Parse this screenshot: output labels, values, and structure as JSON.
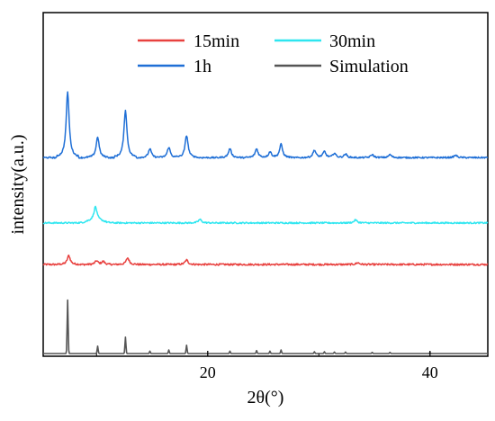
{
  "chart_data": {
    "type": "line",
    "xlabel": "2θ(°)",
    "ylabel": "intensity(a.u.)",
    "xlim": [
      5.2,
      45.2
    ],
    "x_ticks": [
      20,
      40
    ],
    "x_tick_labels": [
      "20",
      "40"
    ],
    "y_ticks": "none",
    "grid": false,
    "legend": {
      "placement": "top",
      "columns": 2
    },
    "baseline_offsets": [
      0,
      0.3,
      0.44,
      0.66
    ],
    "series": [
      {
        "name": "15min",
        "color": "#e8413f",
        "baseline_offset": 0.3,
        "peaks": [
          [
            7.5,
            0.03
          ],
          [
            10.0,
            0.012
          ],
          [
            10.6,
            0.01
          ],
          [
            12.8,
            0.022
          ],
          [
            18.1,
            0.015
          ],
          [
            33.5,
            0.006
          ]
        ],
        "noise": 0.006
      },
      {
        "name": "30min",
        "color": "#2ee6f0",
        "baseline_offset": 0.44,
        "peaks": [
          [
            9.9,
            0.045
          ],
          [
            19.3,
            0.012
          ],
          [
            33.3,
            0.01
          ]
        ],
        "noise": 0.005
      },
      {
        "name": "1h",
        "color": "#1f6fd6",
        "baseline_offset": 0.66,
        "peaks": [
          [
            7.4,
            0.22
          ],
          [
            10.1,
            0.07
          ],
          [
            12.6,
            0.16
          ],
          [
            14.8,
            0.03
          ],
          [
            16.5,
            0.035
          ],
          [
            18.1,
            0.075
          ],
          [
            22.0,
            0.03
          ],
          [
            24.4,
            0.03
          ],
          [
            25.6,
            0.02
          ],
          [
            26.6,
            0.045
          ],
          [
            29.6,
            0.025
          ],
          [
            30.5,
            0.02
          ],
          [
            31.4,
            0.015
          ],
          [
            32.4,
            0.012
          ],
          [
            34.8,
            0.01
          ],
          [
            36.4,
            0.01
          ],
          [
            42.3,
            0.008
          ]
        ],
        "noise": 0.005
      },
      {
        "name": "Simulation",
        "color": "#555555",
        "baseline_offset": 0.0,
        "peaks": [
          [
            7.4,
            0.18
          ],
          [
            10.1,
            0.025
          ],
          [
            12.6,
            0.055
          ],
          [
            14.8,
            0.008
          ],
          [
            16.5,
            0.012
          ],
          [
            18.1,
            0.028
          ],
          [
            22.0,
            0.008
          ],
          [
            24.4,
            0.01
          ],
          [
            25.6,
            0.008
          ],
          [
            26.6,
            0.012
          ],
          [
            29.6,
            0.006
          ],
          [
            30.5,
            0.006
          ],
          [
            31.4,
            0.005
          ],
          [
            32.4,
            0.005
          ],
          [
            34.8,
            0.004
          ],
          [
            36.4,
            0.004
          ],
          [
            40.0,
            0.003
          ]
        ],
        "noise": 0.0
      }
    ]
  }
}
